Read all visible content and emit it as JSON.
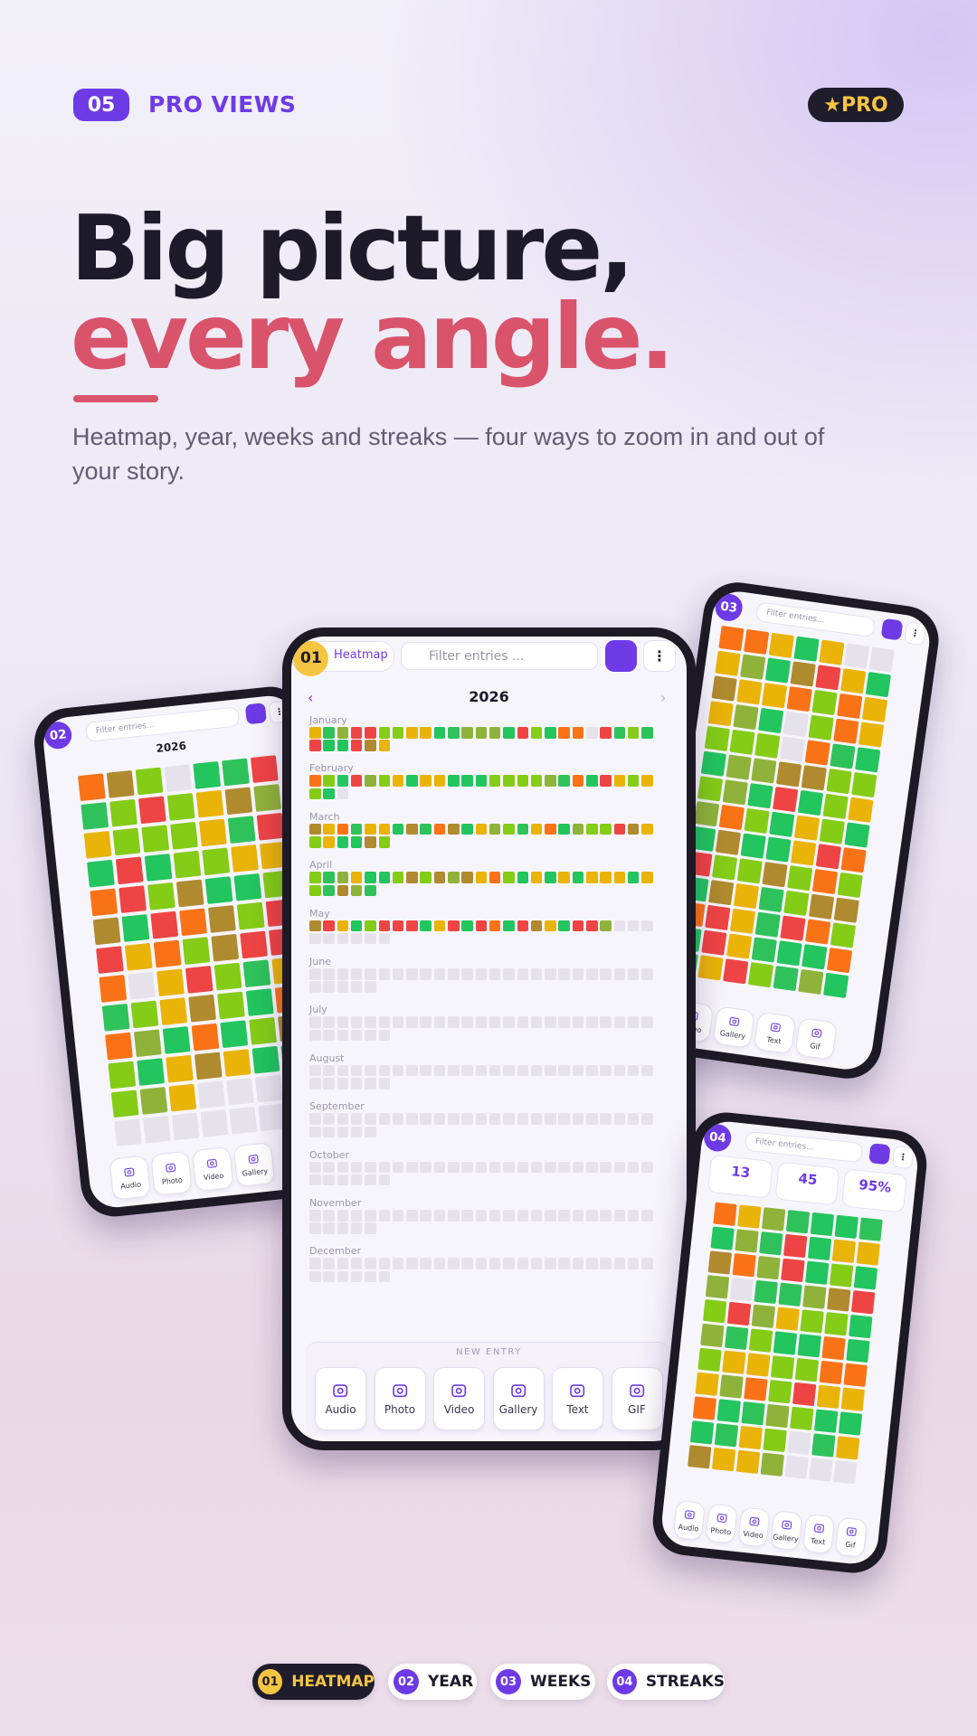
{
  "header": {
    "badge": "05",
    "section": "PRO VIEWS",
    "pro": "★PRO"
  },
  "hero": {
    "title_line1": "Big picture,",
    "title_line2": "every angle.",
    "subtitle": "Heatmap, year, weeks and streaks — four ways to zoom in and out of your story."
  },
  "screens": [
    {
      "number": "01",
      "view": "Heatmap",
      "filter": "Filter entries ...",
      "year": "2026",
      "months": [
        "January",
        "February",
        "March",
        "April",
        "May",
        "June",
        "July",
        "August",
        "September",
        "October",
        "November",
        "December"
      ],
      "new_entry": "NEW ENTRY",
      "actions": [
        "Audio",
        "Photo",
        "Video",
        "Gallery",
        "Text",
        "GIF"
      ]
    },
    {
      "number": "02",
      "filter": "Filter entries...",
      "year": "2026",
      "actions": [
        "Audio",
        "Photo",
        "Video",
        "Gallery"
      ]
    },
    {
      "number": "03",
      "filter": "Filter entries...",
      "actions": [
        "Video",
        "Gallery",
        "Text",
        "Gif"
      ]
    },
    {
      "number": "04",
      "filter": "Filter entries...",
      "stats": [
        "13",
        "45",
        "95%"
      ],
      "actions": [
        "Audio",
        "Photo",
        "Video",
        "Gallery",
        "Text",
        "Gif"
      ]
    }
  ],
  "tabs": [
    {
      "number": "01",
      "label": "HEATMAP"
    },
    {
      "number": "02",
      "label": "YEAR"
    },
    {
      "number": "03",
      "label": "WEEKS"
    },
    {
      "number": "04",
      "label": "STREAKS"
    }
  ]
}
